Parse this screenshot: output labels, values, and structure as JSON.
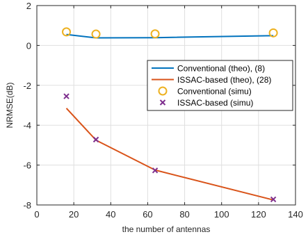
{
  "chart_data": {
    "type": "line",
    "xlabel": "the number of antennas",
    "ylabel": "NRMSE(dB)",
    "xlim": [
      0,
      140
    ],
    "ylim": [
      -8,
      2
    ],
    "xticks": [
      0,
      20,
      40,
      60,
      80,
      100,
      120,
      140
    ],
    "yticks": [
      -8,
      -6,
      -4,
      -2,
      0,
      2
    ],
    "grid": true,
    "legend_position": "right",
    "series": [
      {
        "name": "Conventional (theo), (8)",
        "style": "line",
        "color": "#0072BD",
        "x": [
          16,
          32,
          64,
          128
        ],
        "y": [
          0.55,
          0.38,
          0.39,
          0.49
        ]
      },
      {
        "name": "ISSAC-based (theo), (28)",
        "style": "line",
        "color": "#D95319",
        "x": [
          16,
          32,
          64,
          128
        ],
        "y": [
          -3.15,
          -4.75,
          -6.25,
          -7.75
        ]
      },
      {
        "name": "Conventional (simu)",
        "style": "marker-circle",
        "color": "#EDB120",
        "x": [
          16,
          32,
          64,
          128
        ],
        "y": [
          0.68,
          0.57,
          0.58,
          0.63
        ]
      },
      {
        "name": "ISSAC-based (simu)",
        "style": "marker-x",
        "color": "#7E2F8E",
        "x": [
          16,
          32,
          64,
          128
        ],
        "y": [
          -2.55,
          -4.72,
          -6.27,
          -7.72
        ]
      }
    ]
  }
}
